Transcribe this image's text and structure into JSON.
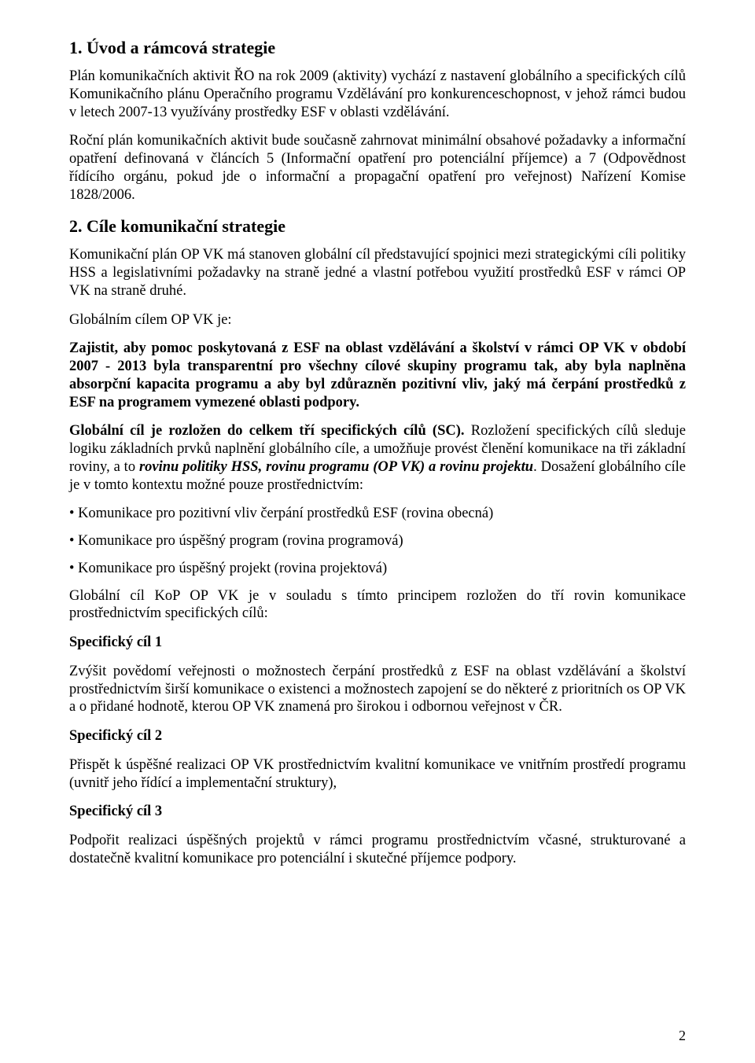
{
  "section1": {
    "heading": "1. Úvod a rámcová strategie",
    "p1": "Plán komunikačních aktivit ŘO na rok 2009 (aktivity) vychází z nastavení globálního a specifických cílů Komunikačního plánu Operačního programu Vzdělávání pro konkurenceschopnost, v jehož rámci budou v letech 2007-13 využívány prostředky ESF v oblasti vzdělávání.",
    "p2": "Roční plán komunikačních aktivit bude současně zahrnovat minimální obsahové požadavky a informační opatření definovaná v článcích 5 (Informační opatření pro potenciální příjemce) a 7 (Odpovědnost řídícího orgánu, pokud jde o informační a propagační opatření pro veřejnost) Nařízení Komise 1828/2006."
  },
  "section2": {
    "heading": "2. Cíle komunikační strategie",
    "p1": "Komunikační plán OP VK má stanoven globální cíl představující spojnici mezi strategickými cíli politiky HSS a legislativními požadavky na straně jedné a vlastní potřebou využití prostředků ESF v rámci OP VK na straně druhé.",
    "p2": "Globálním cílem OP VK  je:",
    "bold1": "Zajistit, aby pomoc poskytovaná z ESF na oblast vzdělávání a školství v rámci OP VK v období 2007 - 2013 byla transparentní pro všechny cílové skupiny programu tak, aby byla naplněna absorpční kapacita programu a aby byl zdůrazněn pozitivní vliv, jaký má čerpání prostředků z ESF na programem vymezené oblasti podpory.",
    "mixed_bold_lead": "Globální cíl je rozložen do celkem tří specifických cílů (SC). ",
    "mixed_plain_tail": "Rozložení specifických cílů sleduje logiku základních prvků naplnění globálního cíle, a umožňuje provést členění komunikace na tři základní roviny, a to ",
    "mixed_italic_part": "rovinu politiky HSS, rovinu programu (OP VK) a rovinu projektu",
    "mixed_plain_tail2": ". Dosažení globálního cíle je v tomto kontextu možné pouze prostřednictvím:",
    "bullets": [
      "• Komunikace pro pozitivní vliv čerpání prostředků ESF (rovina obecná)",
      "• Komunikace pro úspěšný program (rovina programová)",
      "• Komunikace pro úspěšný projekt (rovina projektová)"
    ],
    "p_after_bullets": "Globální cíl KoP OP VK je v souladu s tímto principem rozložen do tří rovin komunikace prostřednictvím specifických cílů:",
    "sc1_title": "Specifický cíl 1",
    "sc1_text": "Zvýšit povědomí veřejnosti o možnostech čerpání prostředků z ESF na oblast vzdělávání a školství prostřednictvím širší komunikace o existenci a možnostech zapojení se do některé z prioritních os OP VK a o přidané hodnotě, kterou OP VK znamená pro širokou i odbornou veřejnost v ČR.",
    "sc2_title": "Specifický cíl 2",
    "sc2_text": "Přispět k úspěšné realizaci OP VK prostřednictvím kvalitní komunikace ve vnitřním prostředí programu (uvnitř jeho řídící a implementační struktury),",
    "sc3_title": "Specifický cíl 3",
    "sc3_text": "Podpořit realizaci úspěšných projektů v rámci programu prostřednictvím včasné, strukturované a dostatečně kvalitní komunikace pro potenciální i skutečné příjemce podpory."
  },
  "page_number": "2"
}
